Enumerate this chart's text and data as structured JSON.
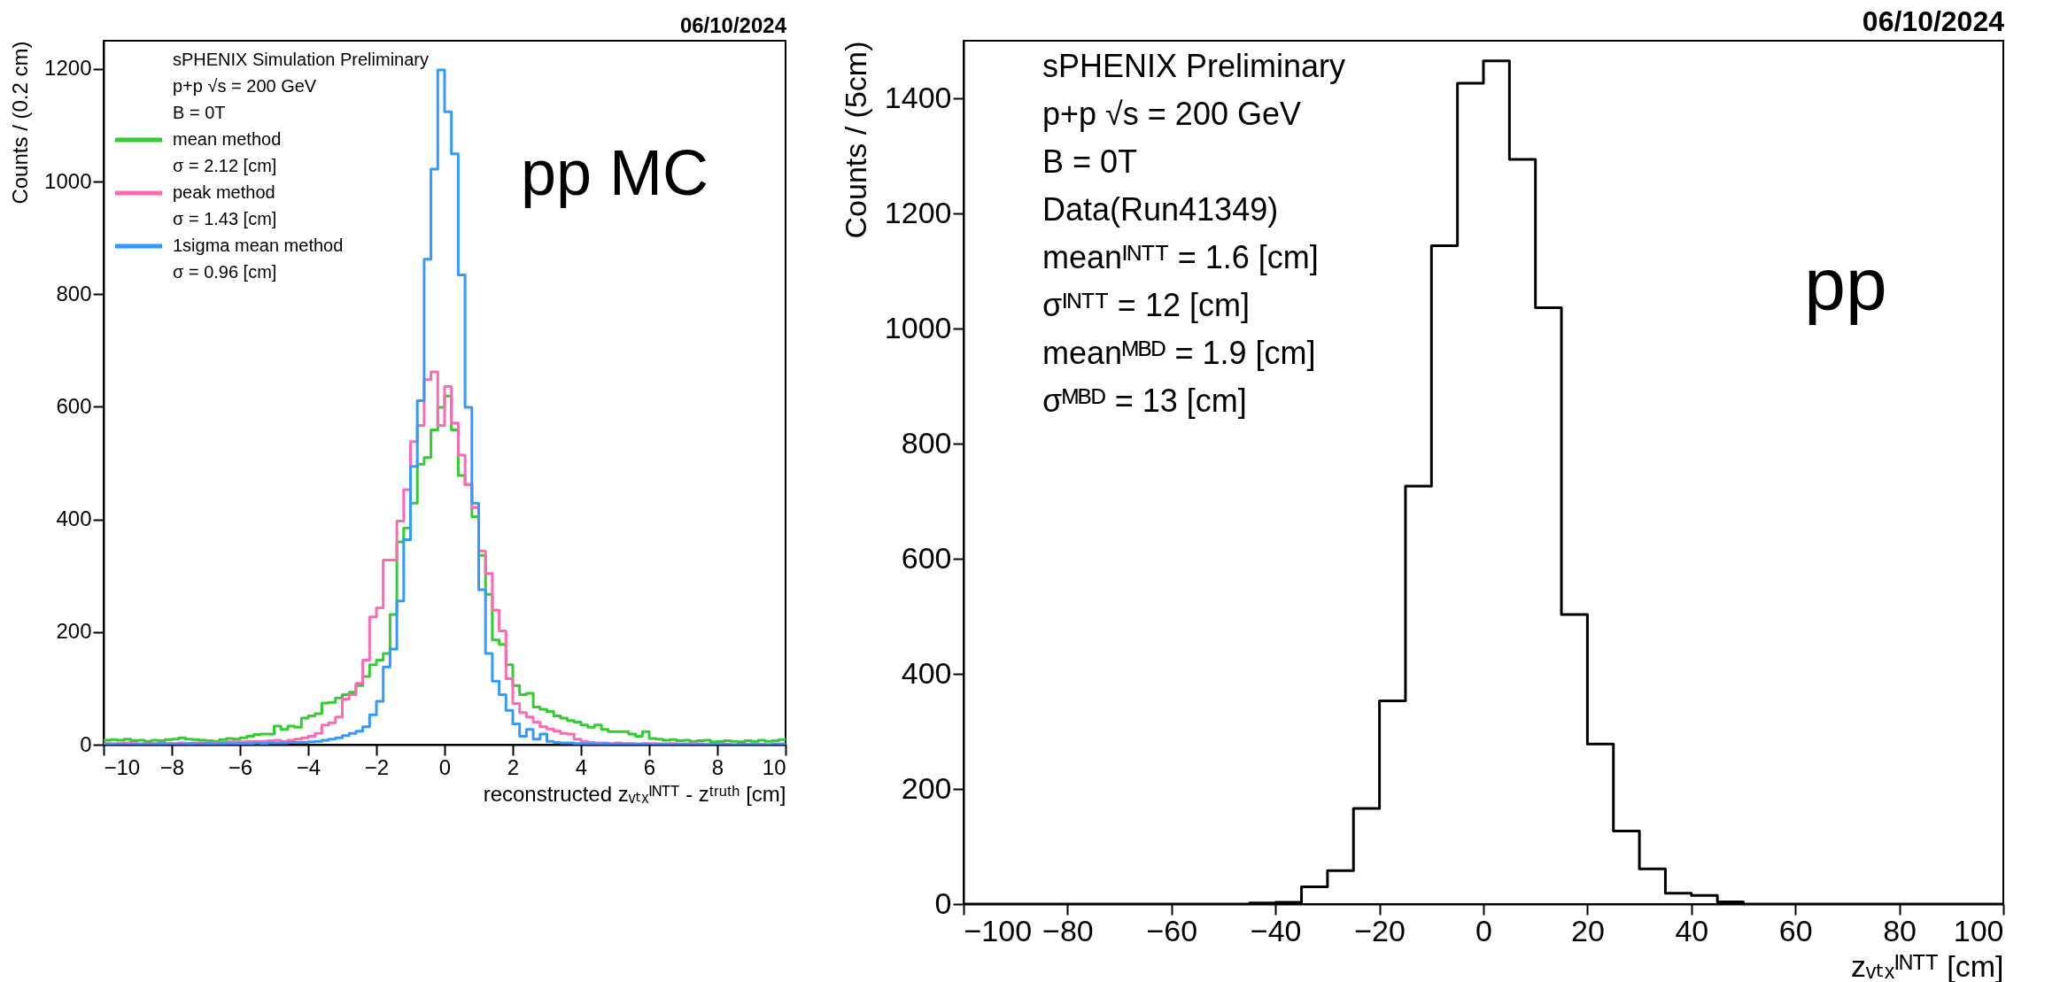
{
  "chart_data": [
    {
      "type": "histogram",
      "title": "06/10/2024",
      "xlabel": "reconstructed zᵥₜₓᴵᴺᵀᵀ - zᵗʳᵘᵗʰ [cm]",
      "ylabel": "Counts / (0.2 cm)",
      "bins": [
        -10,
        -9.8,
        -9.6,
        -9.4,
        -9.2,
        -9,
        -8.8,
        -8.6,
        -8.4,
        -8.2,
        -8,
        -7.8,
        -7.6,
        -7.4,
        -7.2,
        -7,
        -6.8,
        -6.6,
        -6.4,
        -6.2,
        -6,
        -5.8,
        -5.6,
        -5.4,
        -5.2,
        -5,
        -4.8,
        -4.6,
        -4.4,
        -4.2,
        -4,
        -3.8,
        -3.6,
        -3.4,
        -3.2,
        -3,
        -2.8,
        -2.6,
        -2.4,
        -2.2,
        -2,
        -1.8,
        -1.6,
        -1.4,
        -1.2,
        -1,
        -0.8,
        -0.6,
        -0.4,
        -0.2,
        0,
        0.2,
        0.4,
        0.6,
        0.8,
        1,
        1.2,
        1.4,
        1.6,
        1.8,
        2,
        2.2,
        2.4,
        2.6,
        2.8,
        3,
        3.2,
        3.4,
        3.6,
        3.8,
        4,
        4.2,
        4.4,
        4.6,
        4.8,
        5,
        5.2,
        5.4,
        5.6,
        5.8,
        6,
        6.2,
        6.4,
        6.6,
        6.8,
        7,
        7.2,
        7.4,
        7.6,
        7.8,
        8,
        8.2,
        8.4,
        8.6,
        8.8,
        9,
        9.2,
        9.4,
        9.6,
        9.8,
        10
      ],
      "series": [
        {
          "name": "mean method",
          "color": "#33cc33",
          "values": [
            8,
            9,
            8,
            10,
            7,
            8,
            6,
            8,
            7,
            9,
            10,
            12,
            10,
            9,
            8,
            7,
            6,
            9,
            11,
            10,
            12,
            15,
            18,
            19,
            19,
            33,
            27,
            33,
            31,
            47,
            51,
            55,
            74,
            75,
            83,
            89,
            93,
            105,
            121,
            142,
            150,
            162,
            231,
            360,
            385,
            429,
            498,
            510,
            559,
            599,
            619,
            559,
            478,
            462,
            405,
            336,
            267,
            186,
            178,
            142,
            105,
            89,
            91,
            67,
            63,
            59,
            51,
            47,
            43,
            40,
            35,
            31,
            35,
            27,
            23,
            23,
            23,
            19,
            15,
            23,
            11,
            10,
            8,
            9,
            7,
            8,
            6,
            7,
            8,
            5,
            6,
            7,
            6,
            5,
            7,
            6,
            8,
            6,
            7,
            9
          ]
        },
        {
          "name": "peak method",
          "color": "#ff69b4",
          "values": [
            2,
            1,
            2,
            3,
            2,
            1,
            2,
            2,
            3,
            2,
            2,
            3,
            2,
            3,
            3,
            4,
            3,
            4,
            5,
            5,
            5,
            6,
            6,
            6,
            7,
            8,
            6,
            8,
            10,
            12,
            15,
            20,
            35,
            39,
            49,
            81,
            89,
            109,
            150,
            227,
            243,
            328,
            328,
            397,
            453,
            538,
            567,
            648,
            662,
            567,
            636,
            571,
            514,
            462,
            421,
            344,
            304,
            239,
            202,
            117,
            73,
            57,
            49,
            40,
            32,
            28,
            24,
            20,
            19,
            10,
            6,
            4,
            3,
            3,
            2,
            3,
            2,
            2,
            1,
            2,
            2,
            1,
            1,
            2,
            1,
            1,
            2,
            1,
            1,
            0,
            1,
            1,
            0,
            1,
            1,
            0,
            1,
            0,
            1,
            1
          ]
        },
        {
          "name": "1sigma mean method",
          "color": "#3399ff",
          "values": [
            1,
            1,
            1,
            0,
            1,
            1,
            1,
            1,
            2,
            1,
            1,
            1,
            2,
            1,
            1,
            2,
            1,
            2,
            2,
            2,
            2,
            2,
            3,
            2,
            3,
            3,
            3,
            4,
            4,
            4,
            5,
            6,
            8,
            10,
            12,
            16,
            20,
            24,
            32,
            53,
            77,
            138,
            170,
            255,
            364,
            494,
            611,
            862,
            1022,
            1198,
            1124,
            1049,
            834,
            599,
            429,
            275,
            162,
            113,
            89,
            61,
            37,
            15,
            27,
            10,
            19,
            6,
            4,
            3,
            3,
            2,
            2,
            2,
            1,
            2,
            1,
            1,
            1,
            1,
            1,
            1,
            0,
            1,
            1,
            0,
            1,
            1,
            0,
            1,
            0,
            1,
            1,
            0,
            0,
            1,
            0,
            1,
            0,
            0,
            1,
            1
          ]
        }
      ],
      "xlim": [
        -10,
        10
      ],
      "xticks": [
        -10,
        -8,
        -6,
        -4,
        -2,
        0,
        2,
        4,
        6,
        8,
        10
      ],
      "ylim": [
        0,
        1250
      ],
      "yticks": [
        0,
        200,
        400,
        600,
        800,
        1000,
        1200
      ],
      "grid": false,
      "legend": "top left",
      "annotations": [
        "sPHENIX Simulation Preliminary",
        "p+p √s = 200 GeV",
        "B = 0T",
        "σ = 2.12 [cm]",
        "σ = 1.43 [cm]",
        "σ = 0.96 [cm]",
        "pp MC"
      ]
    },
    {
      "type": "histogram",
      "title": "06/10/2024",
      "xlabel": "zᵥₜₓᴵᴺᵀᵀ [cm]",
      "ylabel": "Counts / (5cm)",
      "bins": [
        -100,
        -95,
        -90,
        -85,
        -80,
        -75,
        -70,
        -65,
        -60,
        -55,
        -50,
        -45,
        -40,
        -35,
        -30,
        -25,
        -20,
        -15,
        -10,
        -5,
        0,
        5,
        10,
        15,
        20,
        25,
        30,
        35,
        40,
        45,
        50,
        55,
        60,
        65,
        70,
        75,
        80,
        85,
        90,
        95,
        100
      ],
      "series": [
        {
          "color": "#000000",
          "values": [
            0,
            0,
            0,
            0,
            0,
            0,
            0,
            0,
            0,
            0,
            0,
            2,
            3,
            30,
            58,
            166,
            353,
            726,
            1144,
            1426,
            1465,
            1294,
            1036,
            503,
            278,
            127,
            61,
            19,
            15,
            4,
            0,
            0,
            0,
            0,
            0,
            0,
            0,
            0,
            0,
            0
          ]
        }
      ],
      "xlim": [
        -100,
        100
      ],
      "xticks": [
        -100,
        -80,
        -60,
        -40,
        -20,
        0,
        20,
        40,
        60,
        80,
        100
      ],
      "ylim": [
        0,
        1500
      ],
      "yticks": [
        0,
        200,
        400,
        600,
        800,
        1000,
        1200,
        1400
      ],
      "grid": false,
      "annotations": [
        "sPHENIX Preliminary",
        "p+p √s = 200 GeV",
        "B = 0T",
        "Data(Run41349)",
        "meanᴵᴺᵀᵀ = 1.6 [cm]",
        "σᴵᴺᵀᵀ = 12 [cm]",
        "meanᴹᴮᴰ = 1.9 [cm]",
        "σᴹᴮᴰ = 13 [cm]",
        "pp"
      ]
    }
  ]
}
